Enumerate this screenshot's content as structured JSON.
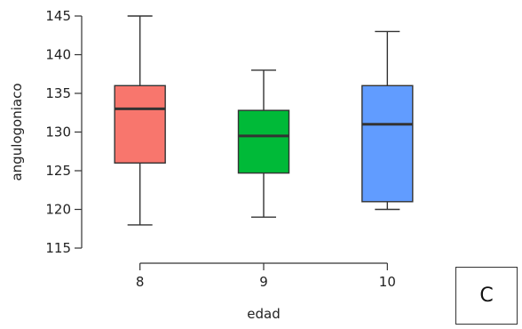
{
  "panel_label": "C",
  "chart_data": {
    "type": "boxplot",
    "xlabel": "edad",
    "ylabel": "angulogoniaco",
    "categories": [
      "8",
      "9",
      "10"
    ],
    "ylim": [
      115,
      145
    ],
    "yticks": [
      115,
      120,
      125,
      130,
      135,
      140,
      145
    ],
    "grid": false,
    "legend": "none",
    "boxes": [
      {
        "category": "8",
        "min": 118,
        "q1": 126,
        "median": 133,
        "q3": 136,
        "max": 145,
        "color": "#F8766D"
      },
      {
        "category": "9",
        "min": 119,
        "q1": 124.7,
        "median": 129.5,
        "q3": 132.8,
        "max": 138,
        "color": "#00BA38"
      },
      {
        "category": "10",
        "min": 120,
        "q1": 121,
        "median": 131,
        "q3": 136,
        "max": 143,
        "color": "#619CFF"
      }
    ]
  }
}
